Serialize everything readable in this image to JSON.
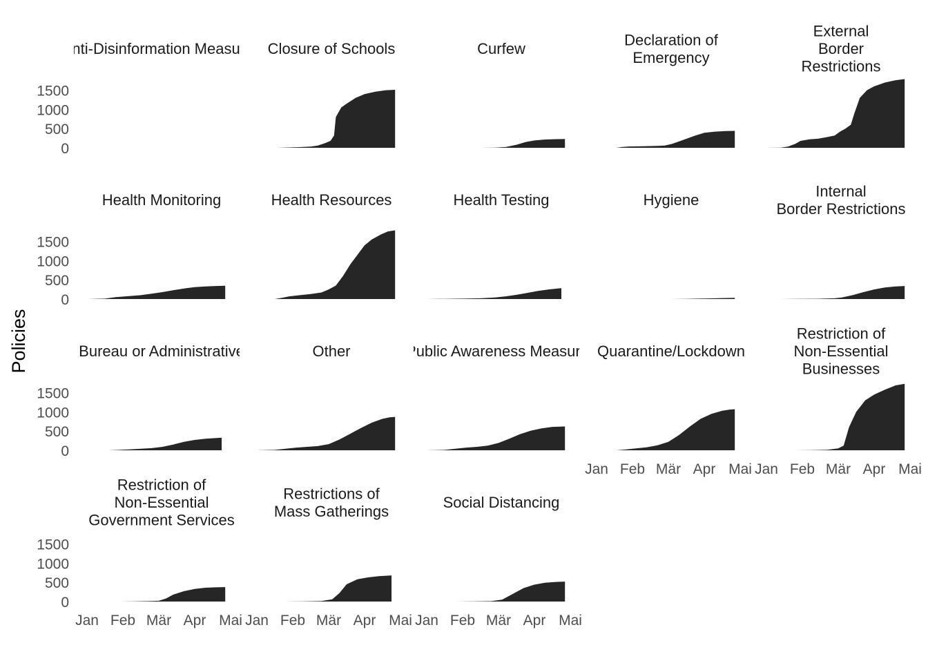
{
  "chart_data": {
    "type": "area",
    "ylabel": "Policies",
    "xlabel": "",
    "ylim": [
      0,
      1900
    ],
    "y_ticks": [
      0,
      500,
      1000,
      1500
    ],
    "x_ticks": [
      "Jan",
      "Feb",
      "Mär",
      "Apr",
      "Mai"
    ],
    "x_range_months": [
      "Jan",
      "Mai"
    ],
    "fill_color": "#262626",
    "grid": false,
    "legend": "none",
    "panels": [
      {
        "title": "Anti-Disinformation Measures",
        "values": []
      },
      {
        "title": "Closure of Schools",
        "values": [
          [
            0.55,
            0
          ],
          [
            0.8,
            8
          ],
          [
            1.2,
            18
          ],
          [
            1.5,
            30
          ],
          [
            1.7,
            60
          ],
          [
            1.9,
            120
          ],
          [
            2.05,
            180
          ],
          [
            2.15,
            320
          ],
          [
            2.2,
            800
          ],
          [
            2.35,
            1050
          ],
          [
            2.5,
            1150
          ],
          [
            2.75,
            1300
          ],
          [
            3.0,
            1400
          ],
          [
            3.3,
            1460
          ],
          [
            3.6,
            1500
          ],
          [
            3.85,
            1510
          ]
        ]
      },
      {
        "title": "Curfew",
        "values": [
          [
            1.5,
            0
          ],
          [
            1.9,
            5
          ],
          [
            2.2,
            20
          ],
          [
            2.5,
            80
          ],
          [
            2.75,
            150
          ],
          [
            3.0,
            190
          ],
          [
            3.3,
            215
          ],
          [
            3.6,
            225
          ],
          [
            3.85,
            230
          ]
        ]
      },
      {
        "title": "Declaration of Emergency",
        "values": [
          [
            0.55,
            0
          ],
          [
            0.7,
            20
          ],
          [
            0.9,
            35
          ],
          [
            1.3,
            40
          ],
          [
            1.7,
            50
          ],
          [
            1.9,
            60
          ],
          [
            2.1,
            100
          ],
          [
            2.4,
            200
          ],
          [
            2.75,
            320
          ],
          [
            3.0,
            390
          ],
          [
            3.3,
            420
          ],
          [
            3.6,
            435
          ],
          [
            3.85,
            440
          ]
        ]
      },
      {
        "title": "External Border Restrictions",
        "values": [
          [
            0.0,
            0
          ],
          [
            0.4,
            5
          ],
          [
            0.6,
            30
          ],
          [
            0.8,
            100
          ],
          [
            0.95,
            180
          ],
          [
            1.2,
            220
          ],
          [
            1.45,
            240
          ],
          [
            1.7,
            280
          ],
          [
            1.9,
            320
          ],
          [
            2.05,
            420
          ],
          [
            2.2,
            500
          ],
          [
            2.35,
            600
          ],
          [
            2.45,
            900
          ],
          [
            2.6,
            1300
          ],
          [
            2.8,
            1500
          ],
          [
            3.0,
            1600
          ],
          [
            3.3,
            1700
          ],
          [
            3.6,
            1760
          ],
          [
            3.85,
            1790
          ]
        ]
      },
      {
        "title": "Health Monitoring",
        "values": [
          [
            0.0,
            0
          ],
          [
            0.5,
            10
          ],
          [
            0.8,
            50
          ],
          [
            1.2,
            80
          ],
          [
            1.5,
            100
          ],
          [
            1.8,
            140
          ],
          [
            2.1,
            180
          ],
          [
            2.4,
            230
          ],
          [
            2.75,
            280
          ],
          [
            3.0,
            310
          ],
          [
            3.3,
            330
          ],
          [
            3.6,
            340
          ],
          [
            3.85,
            345
          ]
        ]
      },
      {
        "title": "Health Resources",
        "values": [
          [
            0.5,
            0
          ],
          [
            0.7,
            30
          ],
          [
            0.9,
            70
          ],
          [
            1.2,
            100
          ],
          [
            1.5,
            130
          ],
          [
            1.8,
            170
          ],
          [
            2.0,
            250
          ],
          [
            2.2,
            350
          ],
          [
            2.4,
            600
          ],
          [
            2.6,
            900
          ],
          [
            2.8,
            1150
          ],
          [
            3.0,
            1400
          ],
          [
            3.2,
            1550
          ],
          [
            3.45,
            1680
          ],
          [
            3.65,
            1760
          ],
          [
            3.85,
            1790
          ]
        ]
      },
      {
        "title": "Health Testing",
        "values": [
          [
            0.0,
            0
          ],
          [
            0.5,
            5
          ],
          [
            1.0,
            10
          ],
          [
            1.5,
            20
          ],
          [
            1.9,
            40
          ],
          [
            2.2,
            70
          ],
          [
            2.5,
            110
          ],
          [
            2.8,
            160
          ],
          [
            3.1,
            210
          ],
          [
            3.4,
            250
          ],
          [
            3.65,
            275
          ],
          [
            3.75,
            285
          ]
        ]
      },
      {
        "title": "Hygiene",
        "values": [
          [
            2.05,
            0
          ],
          [
            2.5,
            5
          ],
          [
            3.0,
            15
          ],
          [
            3.5,
            25
          ],
          [
            3.85,
            30
          ]
        ]
      },
      {
        "title": "Internal Border Restrictions",
        "values": [
          [
            0.4,
            0
          ],
          [
            0.9,
            5
          ],
          [
            1.4,
            8
          ],
          [
            1.9,
            20
          ],
          [
            2.1,
            40
          ],
          [
            2.4,
            100
          ],
          [
            2.7,
            180
          ],
          [
            3.0,
            250
          ],
          [
            3.3,
            300
          ],
          [
            3.6,
            330
          ],
          [
            3.85,
            340
          ]
        ]
      },
      {
        "title": "Bureau or Administrative",
        "values": [
          [
            0.6,
            0
          ],
          [
            0.9,
            10
          ],
          [
            1.2,
            25
          ],
          [
            1.5,
            40
          ],
          [
            1.8,
            55
          ],
          [
            2.1,
            90
          ],
          [
            2.4,
            150
          ],
          [
            2.7,
            220
          ],
          [
            3.0,
            270
          ],
          [
            3.3,
            300
          ],
          [
            3.6,
            320
          ],
          [
            3.75,
            330
          ]
        ]
      },
      {
        "title": "Other",
        "values": [
          [
            0.0,
            0
          ],
          [
            0.5,
            10
          ],
          [
            0.8,
            40
          ],
          [
            1.1,
            70
          ],
          [
            1.4,
            90
          ],
          [
            1.7,
            110
          ],
          [
            2.0,
            160
          ],
          [
            2.3,
            280
          ],
          [
            2.6,
            430
          ],
          [
            2.9,
            580
          ],
          [
            3.2,
            720
          ],
          [
            3.5,
            820
          ],
          [
            3.7,
            860
          ],
          [
            3.85,
            870
          ]
        ]
      },
      {
        "title": "Public Awareness Measures",
        "values": [
          [
            0.0,
            0
          ],
          [
            0.5,
            10
          ],
          [
            0.8,
            40
          ],
          [
            1.1,
            70
          ],
          [
            1.4,
            90
          ],
          [
            1.7,
            120
          ],
          [
            2.0,
            190
          ],
          [
            2.3,
            300
          ],
          [
            2.6,
            420
          ],
          [
            2.9,
            510
          ],
          [
            3.2,
            570
          ],
          [
            3.5,
            610
          ],
          [
            3.85,
            620
          ]
        ]
      },
      {
        "title": "Quarantine/Lockdown",
        "values": [
          [
            0.55,
            0
          ],
          [
            0.8,
            20
          ],
          [
            1.1,
            50
          ],
          [
            1.4,
            80
          ],
          [
            1.7,
            130
          ],
          [
            2.0,
            220
          ],
          [
            2.3,
            400
          ],
          [
            2.6,
            620
          ],
          [
            2.9,
            820
          ],
          [
            3.2,
            950
          ],
          [
            3.5,
            1030
          ],
          [
            3.7,
            1060
          ],
          [
            3.85,
            1070
          ]
        ]
      },
      {
        "title": "Restriction of Non-Essential Businesses",
        "values": [
          [
            0.8,
            0
          ],
          [
            1.3,
            5
          ],
          [
            1.7,
            15
          ],
          [
            2.0,
            50
          ],
          [
            2.15,
            120
          ],
          [
            2.3,
            600
          ],
          [
            2.5,
            1000
          ],
          [
            2.75,
            1300
          ],
          [
            3.0,
            1450
          ],
          [
            3.3,
            1580
          ],
          [
            3.6,
            1690
          ],
          [
            3.85,
            1730
          ]
        ]
      },
      {
        "title": "Restriction of Non-Essential Government Services",
        "values": [
          [
            0.9,
            0
          ],
          [
            1.3,
            5
          ],
          [
            1.7,
            10
          ],
          [
            2.0,
            20
          ],
          [
            2.2,
            80
          ],
          [
            2.4,
            180
          ],
          [
            2.7,
            270
          ],
          [
            3.0,
            330
          ],
          [
            3.3,
            360
          ],
          [
            3.6,
            370
          ],
          [
            3.85,
            375
          ]
        ]
      },
      {
        "title": "Restrictions of Mass Gatherings",
        "values": [
          [
            0.8,
            0
          ],
          [
            1.3,
            5
          ],
          [
            1.8,
            15
          ],
          [
            2.1,
            60
          ],
          [
            2.3,
            220
          ],
          [
            2.5,
            450
          ],
          [
            2.8,
            580
          ],
          [
            3.1,
            630
          ],
          [
            3.4,
            660
          ],
          [
            3.65,
            675
          ],
          [
            3.75,
            680
          ]
        ]
      },
      {
        "title": "Social Distancing",
        "values": [
          [
            0.8,
            0
          ],
          [
            1.3,
            5
          ],
          [
            1.8,
            10
          ],
          [
            2.1,
            50
          ],
          [
            2.4,
            200
          ],
          [
            2.7,
            350
          ],
          [
            3.0,
            440
          ],
          [
            3.3,
            490
          ],
          [
            3.6,
            510
          ],
          [
            3.85,
            520
          ]
        ]
      }
    ]
  }
}
